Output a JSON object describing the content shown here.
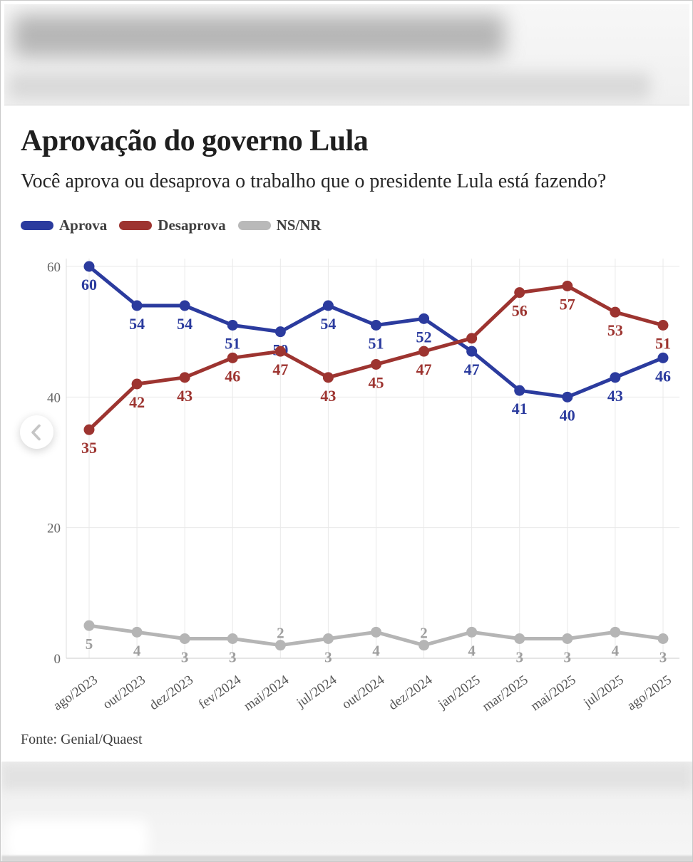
{
  "page": {
    "title": "Aprovação do governo Lula",
    "subtitle": "Você aprova ou desaprova o trabalho que o presidente Lula está fazendo?",
    "source": "Fonte: Genial/Quaest"
  },
  "legend": {
    "items": [
      {
        "label": "Aprova",
        "color": "#2b3b9e"
      },
      {
        "label": "Desaprova",
        "color": "#9d3430"
      },
      {
        "label": "NS/NR",
        "color": "#b9b9b9"
      }
    ]
  },
  "carousel": {
    "prev_icon": "chevron-left"
  },
  "chart_data": {
    "type": "line",
    "title": "Aprovação do governo Lula",
    "xlabel": "",
    "ylabel": "",
    "categories": [
      "ago/2023",
      "out/2023",
      "dez/2023",
      "fev/2024",
      "mai/2024",
      "jul/2024",
      "out/2024",
      "dez/2024",
      "jan/2025",
      "mar/2025",
      "mai/2025",
      "jul/2025",
      "ago/2025"
    ],
    "series": [
      {
        "name": "Aprova",
        "color": "#2b3b9e",
        "values": [
          60,
          54,
          54,
          51,
          50,
          54,
          51,
          52,
          47,
          41,
          40,
          43,
          46
        ],
        "labels": [
          "60",
          "54",
          "54",
          "51",
          "50",
          "54",
          "51",
          "52",
          "47",
          "41",
          "40",
          "43",
          "46"
        ]
      },
      {
        "name": "Desaprova",
        "color": "#9d3430",
        "values": [
          35,
          42,
          43,
          46,
          47,
          43,
          45,
          47,
          49,
          56,
          57,
          53,
          51
        ],
        "labels": [
          "35",
          "42",
          "43",
          "46",
          "47",
          "43",
          "45",
          "47",
          "",
          "56",
          "57",
          "53",
          "51"
        ]
      },
      {
        "name": "NS/NR",
        "color": "#b5b5b5",
        "label_color": "#9e9e9e",
        "values": [
          5,
          4,
          3,
          3,
          2,
          3,
          4,
          2,
          4,
          3,
          3,
          4,
          3
        ],
        "labels": [
          "5",
          "4",
          "3",
          "3",
          "2",
          "3",
          "4",
          "2",
          "4",
          "3",
          "3",
          "4",
          "3"
        ]
      }
    ],
    "ylim": [
      0,
      60
    ],
    "yticks": [
      0,
      20,
      40,
      60
    ],
    "grid": true,
    "legend_position": "top"
  }
}
